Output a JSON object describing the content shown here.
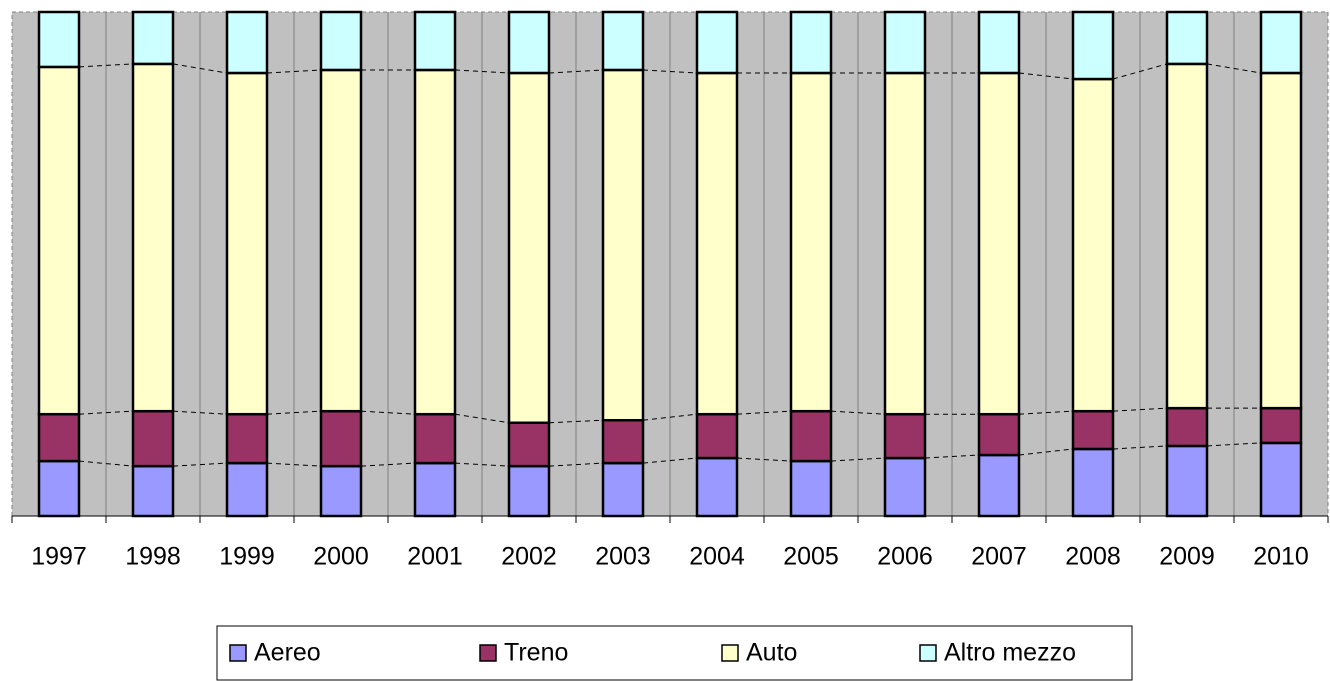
{
  "chart_data": {
    "type": "stacked_bar_100",
    "categories": [
      "1997",
      "1998",
      "1999",
      "2000",
      "2001",
      "2002",
      "2003",
      "2004",
      "2005",
      "2006",
      "2007",
      "2008",
      "2009",
      "2010"
    ],
    "series": [
      {
        "name": "Aereo",
        "color": "#9999ff",
        "values": [
          10.9,
          9.9,
          10.5,
          9.9,
          10.5,
          9.9,
          10.5,
          11.5,
          10.9,
          11.5,
          12.1,
          13.3,
          13.9,
          14.5
        ]
      },
      {
        "name": "Treno",
        "color": "#993366",
        "values": [
          9.3,
          10.9,
          9.7,
          10.9,
          9.7,
          8.6,
          8.5,
          8.7,
          9.9,
          8.7,
          8.1,
          7.5,
          7.5,
          6.9
        ]
      },
      {
        "name": "Auto",
        "color": "#ffffcc",
        "values": [
          68.9,
          68.9,
          67.7,
          67.7,
          68.3,
          69.4,
          69.5,
          67.7,
          67.1,
          67.7,
          67.7,
          65.9,
          68.3,
          66.5
        ]
      },
      {
        "name": "Altro mezzo",
        "color": "#ccffff",
        "values": [
          10.9,
          10.3,
          12.1,
          11.5,
          11.5,
          12.1,
          11.5,
          12.1,
          12.1,
          12.1,
          12.1,
          13.3,
          10.3,
          12.1
        ]
      }
    ],
    "ylim": [
      0,
      100
    ],
    "grid": true,
    "legend": "bottom"
  }
}
